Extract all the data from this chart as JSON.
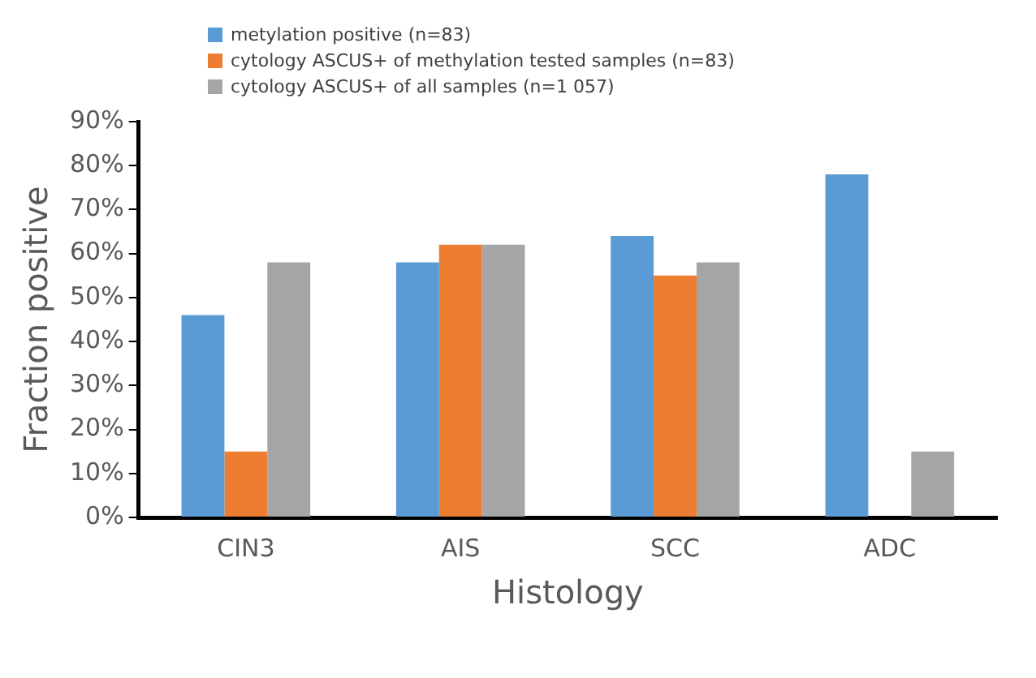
{
  "chart_data": {
    "type": "bar",
    "xlabel": "Histology",
    "ylabel": "Fraction positive",
    "categories": [
      "CIN3",
      "AIS",
      "SCC",
      "ADC"
    ],
    "series": [
      {
        "name": "metylation positive (n=83)",
        "color": "#5b9bd5",
        "values": [
          46,
          58,
          64,
          78
        ]
      },
      {
        "name": "cytology ASCUS+ of methylation tested samples (n=83)",
        "color": "#ed7d31",
        "values": [
          15,
          62,
          55,
          0
        ]
      },
      {
        "name": "cytology ASCUS+ of all samples (n=1 057)",
        "color": "#a5a5a5",
        "values": [
          58,
          62,
          58,
          15
        ]
      }
    ],
    "ylim": [
      0,
      90
    ],
    "yticks": [
      {
        "value": 0,
        "label": "0%"
      },
      {
        "value": 10,
        "label": "10%"
      },
      {
        "value": 20,
        "label": "20%"
      },
      {
        "value": 30,
        "label": "30%"
      },
      {
        "value": 40,
        "label": "40%"
      },
      {
        "value": 50,
        "label": "50%"
      },
      {
        "value": 60,
        "label": "60%"
      },
      {
        "value": 70,
        "label": "70%"
      },
      {
        "value": 80,
        "label": "80%"
      },
      {
        "value": 90,
        "label": "90%"
      }
    ],
    "grid": false,
    "legend": "top"
  }
}
